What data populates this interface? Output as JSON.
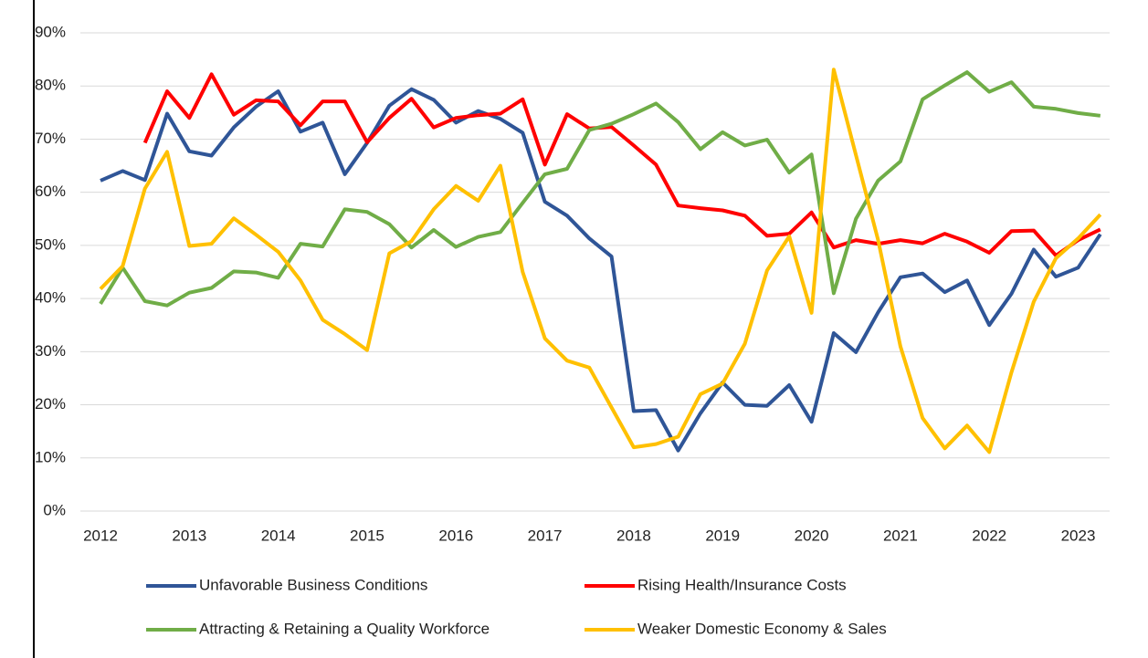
{
  "chart_data": {
    "type": "line",
    "categories": [
      "2012",
      null,
      null,
      null,
      "2013",
      null,
      null,
      null,
      "2014",
      null,
      null,
      null,
      "2015",
      null,
      null,
      null,
      "2016",
      null,
      null,
      null,
      "2017",
      null,
      null,
      null,
      "2018",
      null,
      null,
      null,
      "2019",
      null,
      null,
      null,
      "2020",
      null,
      null,
      null,
      "2021",
      null,
      null,
      null,
      "2022",
      null,
      null,
      null,
      "2023",
      null
    ],
    "series": [
      {
        "name": "Unfavorable Business Conditions",
        "color": "#2f5597",
        "values": [
          62.2,
          64,
          62.3,
          74.8,
          67.7,
          66.9,
          72.2,
          76.1,
          79,
          71.4,
          73.1,
          63.4,
          69.3,
          76.3,
          79.4,
          77.4,
          73.1,
          75.3,
          73.8,
          71.2,
          58.2,
          55.6,
          51.3,
          47.9,
          18.8,
          19,
          11.4,
          18.4,
          24.2,
          20,
          19.8,
          23.7,
          16.8,
          33.5,
          29.9,
          37.4,
          44,
          44.7,
          41.2,
          43.4,
          35,
          40.9,
          49.2,
          44.1,
          45.8,
          52.1
        ]
      },
      {
        "name": "Rising Health/Insurance Costs",
        "color": "#ff0000",
        "values": [
          null,
          null,
          69.3,
          79,
          74,
          82.2,
          74.6,
          77.3,
          77.1,
          72.6,
          77.1,
          77.1,
          69.4,
          74,
          77.6,
          72.2,
          74,
          74.5,
          74.8,
          77.5,
          65.2,
          74.7,
          72,
          72.3,
          68.8,
          65.2,
          57.5,
          57,
          56.6,
          55.6,
          51.8,
          52.2,
          56.2,
          49.6,
          51,
          50.3,
          51,
          50.4,
          52.2,
          50.7,
          48.6,
          52.7,
          52.8,
          48.1,
          51,
          53
        ]
      },
      {
        "name": "Attracting & Retaining a Quality Workforce",
        "color": "#70ad47",
        "values": [
          39,
          45.8,
          39.5,
          38.7,
          41.1,
          42,
          45.1,
          44.9,
          43.9,
          50.3,
          49.8,
          56.8,
          56.3,
          54,
          49.6,
          52.9,
          49.7,
          51.6,
          52.5,
          58,
          63.4,
          64.4,
          71.7,
          72.9,
          74.7,
          76.7,
          73.2,
          68.1,
          71.3,
          68.8,
          69.9,
          63.7,
          67.1,
          41,
          55,
          62.2,
          65.8,
          77.5,
          80.1,
          82.6,
          78.9,
          80.7,
          76.1,
          75.7,
          74.9,
          74.4
        ]
      },
      {
        "name": "Weaker Domestic Economy & Sales",
        "color": "#ffc000",
        "values": [
          41.8,
          46.1,
          60.7,
          67.6,
          49.9,
          50.3,
          55.1,
          52,
          48.8,
          43.4,
          36,
          33.3,
          30.3,
          48.5,
          50.8,
          56.8,
          61.2,
          58.4,
          65,
          45,
          32.5,
          28.3,
          27,
          19.5,
          12,
          12.6,
          14,
          22,
          24,
          31.5,
          45.3,
          51.7,
          37.3,
          83.1,
          67,
          51,
          31,
          17.5,
          11.8,
          16.1,
          11.1,
          26.1,
          39.4,
          47.6,
          51.3,
          55.8
        ]
      }
    ],
    "ylim": [
      0,
      90
    ],
    "yticks": [
      {
        "value": 0,
        "label": "0%"
      },
      {
        "value": 10,
        "label": "10%"
      },
      {
        "value": 20,
        "label": "20%"
      },
      {
        "value": 30,
        "label": "30%"
      },
      {
        "value": 40,
        "label": "40%"
      },
      {
        "value": 50,
        "label": "50%"
      },
      {
        "value": 60,
        "label": "60%"
      },
      {
        "value": 70,
        "label": "70%"
      },
      {
        "value": 80,
        "label": "80%"
      },
      {
        "value": 90,
        "label": "90%"
      }
    ],
    "grid": true,
    "legend": "bottom"
  }
}
